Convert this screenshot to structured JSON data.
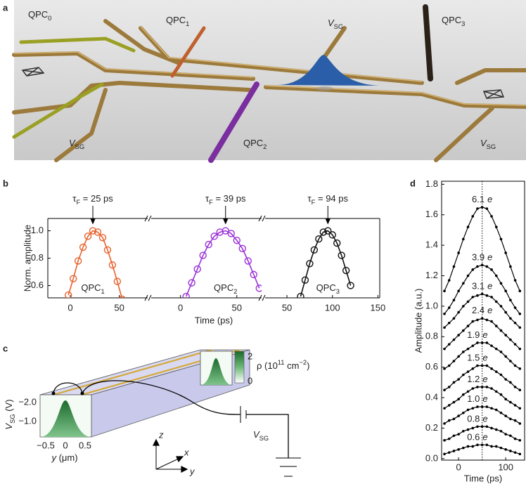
{
  "figure": {
    "panel_labels": [
      "a",
      "b",
      "c",
      "d"
    ],
    "a": {
      "labels": [
        {
          "main": "QPC",
          "sub": "0"
        },
        {
          "main": "QPC",
          "sub": "1"
        },
        {
          "main": "V",
          "sub": "SG"
        },
        {
          "main": "QPC",
          "sub": "3"
        },
        {
          "main": "QPC",
          "sub": "2"
        },
        {
          "main": "V",
          "sub": "SG"
        },
        {
          "main": "V",
          "sub": "SG"
        }
      ]
    },
    "c": {
      "ylabel": {
        "main": "V",
        "sub": "SG",
        "rest": " (V)"
      },
      "yticks": [
        "−2.0",
        "−1.0"
      ],
      "xticks": [
        "−0.5",
        "0",
        "0.5"
      ],
      "xlabel": {
        "main": "y",
        "rest": " (μm)"
      },
      "colorbar_label": {
        "main": "ρ (10",
        "sup1": "11",
        "mid": " cm",
        "sup2": "−2",
        "end": ")"
      },
      "colorbar_ticks": [
        "2",
        "0"
      ],
      "source_label": {
        "main": "V",
        "sub": "SG"
      },
      "axes": [
        "z",
        "x",
        "y"
      ]
    }
  },
  "chart_data": [
    {
      "type": "line",
      "ylabel": "Norm. amplitude",
      "xlim": [
        -23,
        79
      ],
      "ylim": [
        0.51,
        1.09
      ],
      "xticks": [
        0,
        50
      ],
      "yticks": [
        0.6,
        0.8,
        {
          "value": 1,
          "label": "1.0"
        }
      ],
      "annotation": {
        "symbol": "τ",
        "sub": "F",
        "rest": " = 25 ps"
      },
      "x": [
        -2,
        3,
        8,
        13,
        18,
        23,
        28,
        33,
        38,
        43,
        48,
        53
      ],
      "series": [
        {
          "name": "QPC",
          "name_sub": "1",
          "color": "#e8612c",
          "values": [
            0.53,
            0.65,
            0.78,
            0.88,
            0.96,
            1,
            0.99,
            0.95,
            0.86,
            0.75,
            0.63,
            0.5
          ]
        }
      ]
    },
    {
      "type": "line",
      "xlabel": "Time (ps)",
      "xlim": [
        -26,
        72
      ],
      "ylim": [
        0.51,
        1.09
      ],
      "xticks": [
        0,
        50
      ],
      "annotation": {
        "symbol": "τ",
        "sub": "F",
        "rest": " = 39 ps"
      },
      "x": [
        5,
        10,
        15,
        20,
        25,
        30,
        35,
        40,
        45,
        50,
        55,
        60,
        65,
        70
      ],
      "series": [
        {
          "name": "QPC",
          "name_sub": "2",
          "color": "#9b30d9",
          "values": [
            0.52,
            0.62,
            0.72,
            0.82,
            0.9,
            0.96,
            0.99,
            1,
            0.98,
            0.93,
            0.87,
            0.78,
            0.68,
            0.58
          ]
        }
      ]
    },
    {
      "type": "line",
      "xlim": [
        26,
        152
      ],
      "ylim": [
        0.51,
        1.09
      ],
      "xticks": [
        50,
        100,
        150
      ],
      "annotation": {
        "symbol": "τ",
        "sub": "F",
        "rest": " = 94 ps"
      },
      "x": [
        65,
        70,
        75,
        80,
        85,
        90,
        95,
        100,
        105,
        110,
        115,
        120
      ],
      "series": [
        {
          "name": "QPC",
          "name_sub": "3",
          "color": "#111111",
          "values": [
            0.52,
            0.64,
            0.76,
            0.86,
            0.94,
            0.99,
            1,
            0.97,
            0.91,
            0.82,
            0.71,
            0.6
          ]
        }
      ]
    },
    {
      "type": "line",
      "ylabel": "Amplitude (a.u.)",
      "xlabel": "Time (ps)",
      "xlim": [
        -36,
        140
      ],
      "ylim": [
        -0.01,
        1.82
      ],
      "xticks": [
        0,
        100
      ],
      "yticks": [
        {
          "value": 0,
          "label": "0.0"
        },
        0.2,
        0.4,
        0.6,
        0.8,
        {
          "value": 1,
          "label": "1.0"
        },
        1.2,
        1.4,
        1.6,
        1.8
      ],
      "reference_x": 50,
      "unit_label": "e",
      "x": [
        -30,
        -20,
        -10,
        0,
        10,
        20,
        30,
        40,
        50,
        60,
        70,
        80,
        90,
        100,
        110,
        120,
        130
      ],
      "series": [
        {
          "name": "6.1",
          "color": "#000000",
          "values": [
            1.1,
            1.17,
            1.26,
            1.35,
            1.44,
            1.52,
            1.59,
            1.64,
            1.65,
            1.64,
            1.59,
            1.52,
            1.44,
            1.35,
            1.26,
            1.17,
            1.1
          ]
        },
        {
          "name": "3.9",
          "color": "#000000",
          "values": [
            0.95,
            0.99,
            1.04,
            1.1,
            1.15,
            1.2,
            1.24,
            1.26,
            1.27,
            1.26,
            1.24,
            1.2,
            1.15,
            1.1,
            1.04,
            0.99,
            0.95
          ]
        },
        {
          "name": "3.1",
          "color": "#000000",
          "values": [
            0.86,
            0.89,
            0.92,
            0.96,
            1.0,
            1.03,
            1.06,
            1.07,
            1.08,
            1.07,
            1.06,
            1.03,
            1.0,
            0.96,
            0.92,
            0.89,
            0.86
          ]
        },
        {
          "name": "2.4",
          "color": "#000000",
          "values": [
            0.72,
            0.75,
            0.78,
            0.81,
            0.84,
            0.87,
            0.9,
            0.91,
            0.92,
            0.91,
            0.9,
            0.87,
            0.84,
            0.81,
            0.78,
            0.75,
            0.72
          ]
        },
        {
          "name": "1.9",
          "color": "#000000",
          "values": [
            0.59,
            0.61,
            0.64,
            0.67,
            0.7,
            0.72,
            0.74,
            0.76,
            0.76,
            0.76,
            0.74,
            0.72,
            0.7,
            0.67,
            0.64,
            0.61,
            0.59
          ]
        },
        {
          "name": "1.5",
          "color": "#000000",
          "values": [
            0.45,
            0.47,
            0.5,
            0.52,
            0.55,
            0.57,
            0.59,
            0.61,
            0.61,
            0.61,
            0.59,
            0.57,
            0.55,
            0.52,
            0.5,
            0.47,
            0.45
          ]
        },
        {
          "name": "1.2",
          "color": "#000000",
          "values": [
            0.33,
            0.35,
            0.37,
            0.39,
            0.42,
            0.44,
            0.46,
            0.47,
            0.47,
            0.47,
            0.46,
            0.44,
            0.42,
            0.39,
            0.37,
            0.35,
            0.33
          ]
        },
        {
          "name": "1.0",
          "color": "#000000",
          "values": [
            0.23,
            0.25,
            0.26,
            0.28,
            0.3,
            0.32,
            0.33,
            0.34,
            0.34,
            0.34,
            0.33,
            0.32,
            0.3,
            0.28,
            0.26,
            0.25,
            0.23
          ]
        },
        {
          "name": "0.8",
          "color": "#000000",
          "values": [
            0.12,
            0.13,
            0.15,
            0.16,
            0.18,
            0.19,
            0.2,
            0.21,
            0.21,
            0.21,
            0.2,
            0.19,
            0.18,
            0.16,
            0.15,
            0.13,
            0.12
          ]
        },
        {
          "name": "0.6",
          "color": "#000000",
          "values": [
            0.03,
            0.04,
            0.05,
            0.06,
            0.07,
            0.08,
            0.08,
            0.09,
            0.09,
            0.09,
            0.08,
            0.08,
            0.07,
            0.06,
            0.05,
            0.04,
            0.03
          ]
        }
      ]
    }
  ]
}
